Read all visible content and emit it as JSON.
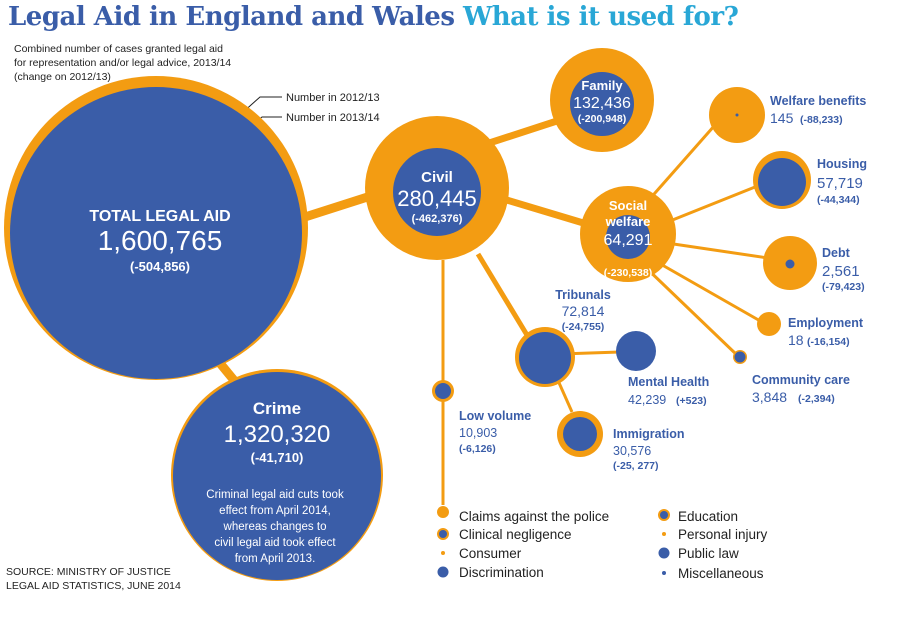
{
  "title": {
    "part1": "Legal Aid in England and Wales",
    "part2": "What is it used for?"
  },
  "subtitle": {
    "line1": "Combined number of cases granted legal aid",
    "line2": "for representation and/or legal advice, 2013/14",
    "line3": "(change on 2012/13)"
  },
  "legend_keys": {
    "prev": "Number in 2012/13",
    "curr": "Number in 2013/14"
  },
  "source": {
    "line1": "SOURCE: MINISTRY OF JUSTICE",
    "line2": "LEGAL AID STATISTICS, JUNE 2014"
  },
  "colors": {
    "orange": "#f39c12",
    "blue": "#3a5da8",
    "title_blue": "#3a5da8",
    "title_cyan": "#29a7d6",
    "white": "#ffffff"
  },
  "nodes": {
    "total": {
      "label": "TOTAL LEGAL AID",
      "value": "1,600,765",
      "change": "(-504,856)",
      "n2013": 1600765,
      "n2012": 2105621
    },
    "crime": {
      "label": "Crime",
      "value": "1,320,320",
      "change": "(-41,710)",
      "n2013": 1320320,
      "n2012": 1362030,
      "note": [
        "Criminal legal aid cuts took",
        "effect from April 2014,",
        "whereas changes to",
        "civil legal aid took effect",
        "from April 2013."
      ]
    },
    "civil": {
      "label": "Civil",
      "value": "280,445",
      "change": "(-462,376)",
      "n2013": 280445,
      "n2012": 742821
    },
    "family": {
      "label": "Family",
      "value": "132,436",
      "change": "(-200,948)",
      "n2013": 132436,
      "n2012": 333384
    },
    "social": {
      "label1": "Social",
      "label2": "welfare",
      "value": "64,291",
      "change": "(-230,538)",
      "n2013": 64291,
      "n2012": 294829
    },
    "welfare": {
      "label": "Welfare benefits",
      "value": "145",
      "change": "(-88,233)",
      "n2013": 145,
      "n2012": 88378
    },
    "housing": {
      "label": "Housing",
      "value": "57,719",
      "change": "(-44,344)",
      "n2013": 57719,
      "n2012": 102063
    },
    "debt": {
      "label": "Debt",
      "value": "2,561",
      "change": "(-79,423)",
      "n2013": 2561,
      "n2012": 81984
    },
    "employment": {
      "label": "Employment",
      "value": "18",
      "change": "(-16,154)",
      "n2013": 18,
      "n2012": 16172
    },
    "community": {
      "label": "Community care",
      "value": "3,848",
      "change": "(-2,394)",
      "n2013": 3848,
      "n2012": 6242
    },
    "tribunals": {
      "label": "Tribunals",
      "value": "72,814",
      "change": "(-24,755)",
      "n2013": 72814,
      "n2012": 97569
    },
    "mental": {
      "label": "Mental Health",
      "value": "42,239",
      "change": "(+523)",
      "n2013": 42239,
      "n2012": 41716
    },
    "immigration": {
      "label": "Immigration",
      "value": "30,576",
      "change": "(-25, 277)",
      "n2013": 30576,
      "n2012": 55853
    },
    "lowvolume": {
      "label": "Low volume",
      "value": "10,903",
      "change": "(-6,126)",
      "n2013": 10903,
      "n2012": 17029
    }
  },
  "low_volume_legend": {
    "left": [
      {
        "label": "Claims against the police",
        "style": "prev-only"
      },
      {
        "label": "Clinical negligence",
        "style": "ring"
      },
      {
        "label": "Consumer",
        "style": "dot-orange"
      },
      {
        "label": "Discrimination",
        "style": "solid-blue"
      }
    ],
    "right": [
      {
        "label": "Education",
        "style": "ring"
      },
      {
        "label": "Personal injury",
        "style": "dot-orange"
      },
      {
        "label": "Public law",
        "style": "solid-blue"
      },
      {
        "label": "Miscellaneous",
        "style": "dot-blue"
      }
    ]
  }
}
